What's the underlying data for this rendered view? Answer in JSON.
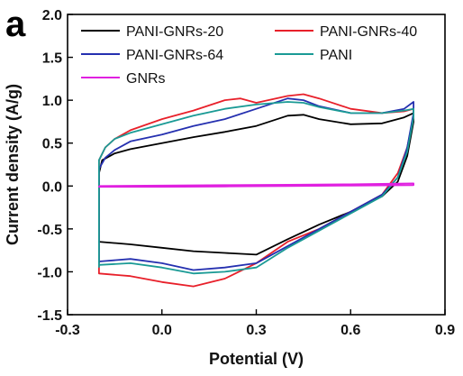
{
  "panel_label": "a",
  "chart_data": {
    "type": "line",
    "title": "",
    "xlabel": "Potential (V)",
    "ylabel": "Current density (A/g)",
    "xlim": [
      -0.3,
      0.9
    ],
    "ylim": [
      -1.5,
      2.0
    ],
    "xticks": [
      -0.3,
      0.0,
      0.3,
      0.6,
      0.9
    ],
    "xtick_labels": [
      "-0.3",
      "0.0",
      "0.3",
      "0.6",
      "0.9"
    ],
    "yticks": [
      -1.5,
      -1.0,
      -0.5,
      0.0,
      0.5,
      1.0,
      1.5,
      2.0
    ],
    "ytick_labels": [
      "-1.5",
      "-1.0",
      "-0.5",
      "0.0",
      "0.5",
      "1.0",
      "1.5",
      "2.0"
    ],
    "grid": false,
    "legend_position": "top",
    "series": [
      {
        "name": "PANI-GNRs-20",
        "color": "#000000",
        "x": [
          -0.2,
          -0.2,
          -0.19,
          -0.15,
          -0.1,
          0.0,
          0.1,
          0.2,
          0.3,
          0.4,
          0.45,
          0.5,
          0.6,
          0.7,
          0.77,
          0.8,
          0.8,
          0.78,
          0.75,
          0.7,
          0.6,
          0.5,
          0.4,
          0.3,
          0.2,
          0.1,
          0.0,
          -0.1,
          -0.2,
          -0.2
        ],
        "y": [
          -0.65,
          0.15,
          0.3,
          0.38,
          0.43,
          0.5,
          0.57,
          0.63,
          0.7,
          0.82,
          0.83,
          0.78,
          0.72,
          0.73,
          0.8,
          0.85,
          0.75,
          0.35,
          0.05,
          -0.12,
          -0.3,
          -0.45,
          -0.62,
          -0.8,
          -0.78,
          -0.76,
          -0.72,
          -0.68,
          -0.65,
          -0.65
        ]
      },
      {
        "name": "PANI-GNRs-40",
        "color": "#e8202a",
        "x": [
          -0.2,
          -0.2,
          -0.18,
          -0.15,
          -0.1,
          0.0,
          0.1,
          0.2,
          0.25,
          0.3,
          0.4,
          0.45,
          0.5,
          0.6,
          0.7,
          0.77,
          0.8,
          0.8,
          0.78,
          0.75,
          0.7,
          0.6,
          0.5,
          0.4,
          0.3,
          0.2,
          0.1,
          0.0,
          -0.1,
          -0.2,
          -0.2
        ],
        "y": [
          -1.0,
          0.3,
          0.45,
          0.55,
          0.65,
          0.78,
          0.88,
          1.0,
          1.02,
          0.97,
          1.05,
          1.07,
          1.02,
          0.9,
          0.85,
          0.87,
          0.9,
          0.8,
          0.45,
          0.15,
          -0.1,
          -0.3,
          -0.5,
          -0.65,
          -0.9,
          -1.08,
          -1.17,
          -1.12,
          -1.05,
          -1.02,
          -1.0
        ]
      },
      {
        "name": "PANI-GNRs-64",
        "color": "#2530b0",
        "x": [
          -0.2,
          -0.2,
          -0.18,
          -0.15,
          -0.1,
          0.0,
          0.1,
          0.2,
          0.3,
          0.4,
          0.45,
          0.5,
          0.6,
          0.7,
          0.77,
          0.8,
          0.8,
          0.78,
          0.75,
          0.7,
          0.6,
          0.5,
          0.4,
          0.3,
          0.2,
          0.1,
          0.0,
          -0.1,
          -0.2,
          -0.2
        ],
        "y": [
          -0.9,
          0.2,
          0.33,
          0.42,
          0.52,
          0.6,
          0.7,
          0.78,
          0.9,
          1.02,
          1.0,
          0.93,
          0.85,
          0.85,
          0.9,
          0.98,
          0.85,
          0.45,
          0.1,
          -0.1,
          -0.3,
          -0.5,
          -0.7,
          -0.9,
          -0.95,
          -0.98,
          -0.9,
          -0.85,
          -0.88,
          -0.9
        ]
      },
      {
        "name": "PANI",
        "color": "#1a9a95",
        "x": [
          -0.2,
          -0.2,
          -0.18,
          -0.15,
          -0.1,
          0.0,
          0.1,
          0.2,
          0.3,
          0.4,
          0.45,
          0.5,
          0.6,
          0.7,
          0.77,
          0.8,
          0.8,
          0.78,
          0.75,
          0.7,
          0.6,
          0.5,
          0.4,
          0.3,
          0.2,
          0.1,
          0.0,
          -0.1,
          -0.2,
          -0.2
        ],
        "y": [
          -0.95,
          0.3,
          0.45,
          0.55,
          0.62,
          0.72,
          0.82,
          0.9,
          0.95,
          0.98,
          0.97,
          0.92,
          0.85,
          0.85,
          0.88,
          0.9,
          0.8,
          0.4,
          0.1,
          -0.12,
          -0.32,
          -0.52,
          -0.72,
          -0.95,
          -1.0,
          -1.02,
          -0.95,
          -0.9,
          -0.92,
          -0.95
        ]
      },
      {
        "name": "GNRs",
        "color": "#e020e0",
        "x": [
          -0.2,
          0.0,
          0.2,
          0.4,
          0.6,
          0.8,
          0.8,
          0.6,
          0.4,
          0.2,
          0.0,
          -0.2,
          -0.2
        ],
        "y": [
          0.0,
          0.005,
          0.01,
          0.015,
          0.02,
          0.03,
          0.01,
          0.005,
          0.0,
          -0.005,
          -0.01,
          -0.01,
          0.0
        ]
      }
    ]
  }
}
